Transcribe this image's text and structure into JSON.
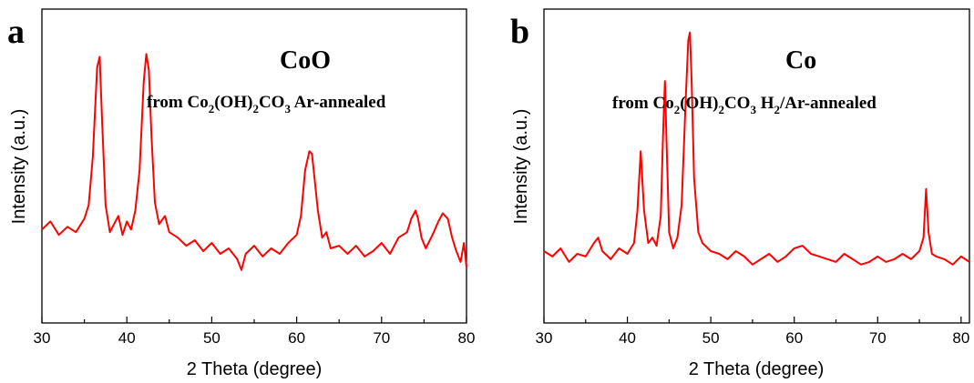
{
  "colors": {
    "trace": "#ff0000",
    "axis": "#000000",
    "background": "#ffffff"
  },
  "chart_data": [
    {
      "type": "line",
      "panel_label": "a",
      "annotation_title": "CoO",
      "annotation_subtitle_parts": [
        "from Co",
        "2",
        "(OH)",
        "2",
        "CO",
        "3",
        " Ar-annealed"
      ],
      "xlabel": "2 Theta (degree)",
      "ylabel": "Intensity (a.u.)",
      "xlim": [
        30,
        80
      ],
      "ylim": [
        0,
        1
      ],
      "x_ticks": [
        "30",
        "40",
        "50",
        "60",
        "70",
        "80"
      ],
      "y_ticks": [],
      "grid": false,
      "series": [
        {
          "x": [
            30,
            31,
            32,
            33,
            34,
            35,
            35.5,
            36,
            36.5,
            36.8,
            37.1,
            37.5,
            38,
            38.5,
            39,
            39.5,
            40,
            40.5,
            41,
            41.5,
            42,
            42.3,
            42.6,
            42.9,
            43.3,
            43.8,
            44.5,
            45,
            46,
            47,
            48,
            49,
            50,
            51,
            52,
            53,
            53.5,
            54,
            55,
            56,
            57,
            58,
            59,
            60,
            60.5,
            61,
            61.5,
            61.8,
            62.1,
            62.5,
            63,
            63.5,
            64,
            65,
            66,
            67,
            68,
            69,
            70,
            71,
            72,
            73,
            73.5,
            74,
            74.3,
            74.7,
            75.2,
            76,
            76.7,
            77.2,
            77.8,
            78.3,
            78.8,
            79.3,
            79.7,
            80
          ],
          "y": [
            0.23,
            0.26,
            0.21,
            0.24,
            0.22,
            0.27,
            0.32,
            0.5,
            0.83,
            0.87,
            0.62,
            0.32,
            0.22,
            0.25,
            0.28,
            0.21,
            0.26,
            0.23,
            0.3,
            0.45,
            0.78,
            0.88,
            0.82,
            0.58,
            0.33,
            0.25,
            0.28,
            0.22,
            0.2,
            0.17,
            0.19,
            0.15,
            0.18,
            0.14,
            0.16,
            0.12,
            0.08,
            0.14,
            0.17,
            0.13,
            0.16,
            0.14,
            0.18,
            0.21,
            0.28,
            0.45,
            0.52,
            0.51,
            0.42,
            0.3,
            0.2,
            0.22,
            0.16,
            0.17,
            0.14,
            0.17,
            0.13,
            0.15,
            0.18,
            0.14,
            0.2,
            0.22,
            0.27,
            0.3,
            0.27,
            0.2,
            0.16,
            0.21,
            0.26,
            0.29,
            0.27,
            0.2,
            0.15,
            0.11,
            0.18,
            0.09
          ]
        }
      ]
    },
    {
      "type": "line",
      "panel_label": "b",
      "annotation_title": "Co",
      "annotation_subtitle_parts": [
        "from Co",
        "2",
        "(OH)",
        "2",
        "CO",
        "3",
        " H",
        "2",
        "/Ar-annealed"
      ],
      "xlabel": "2 Theta (degree)",
      "ylabel": "Intensity (a.u.)",
      "xlim": [
        30,
        81
      ],
      "ylim": [
        0,
        1
      ],
      "x_ticks": [
        "30",
        "40",
        "50",
        "60",
        "70",
        "80"
      ],
      "y_ticks": [],
      "grid": false,
      "series": [
        {
          "x": [
            30,
            31,
            32,
            33,
            34,
            35,
            36,
            36.5,
            37,
            38,
            39,
            40,
            40.8,
            41.2,
            41.6,
            42,
            42.5,
            43,
            43.5,
            44,
            44.3,
            44.5,
            44.7,
            45,
            45.5,
            46,
            46.5,
            47,
            47.3,
            47.5,
            47.7,
            48,
            48.5,
            49,
            50,
            51,
            52,
            53,
            54,
            55,
            56,
            57,
            58,
            59,
            60,
            61,
            62,
            63,
            64,
            65,
            66,
            67,
            68,
            69,
            70,
            71,
            72,
            73,
            74,
            75,
            75.5,
            75.8,
            76.1,
            76.5,
            77,
            78,
            79,
            80,
            81
          ],
          "y": [
            0.15,
            0.13,
            0.16,
            0.11,
            0.14,
            0.13,
            0.18,
            0.2,
            0.15,
            0.12,
            0.16,
            0.14,
            0.18,
            0.3,
            0.52,
            0.3,
            0.18,
            0.2,
            0.17,
            0.28,
            0.6,
            0.78,
            0.55,
            0.22,
            0.16,
            0.2,
            0.32,
            0.72,
            0.93,
            0.96,
            0.78,
            0.42,
            0.22,
            0.18,
            0.15,
            0.14,
            0.12,
            0.15,
            0.13,
            0.1,
            0.12,
            0.14,
            0.11,
            0.13,
            0.16,
            0.17,
            0.14,
            0.13,
            0.12,
            0.11,
            0.14,
            0.12,
            0.1,
            0.11,
            0.13,
            0.11,
            0.12,
            0.14,
            0.12,
            0.15,
            0.2,
            0.38,
            0.22,
            0.14,
            0.13,
            0.12,
            0.1,
            0.13,
            0.11
          ]
        }
      ]
    }
  ]
}
